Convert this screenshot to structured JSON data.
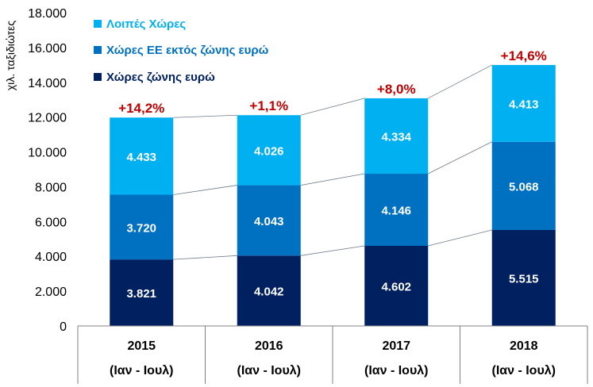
{
  "chart_data": {
    "type": "bar",
    "stacked": true,
    "ylabel": "χιλ. ταξιδιώτες",
    "ylim": [
      0,
      18000
    ],
    "ytick_values": [
      0,
      2000,
      4000,
      6000,
      8000,
      10000,
      12000,
      14000,
      16000,
      18000
    ],
    "ytick_labels": [
      "0",
      "2.000",
      "4.000",
      "6.000",
      "8.000",
      "10.000",
      "12.000",
      "14.000",
      "16.000",
      "18.000"
    ],
    "categories": [
      "2015",
      "2016",
      "2017",
      "2018"
    ],
    "category_sublabel": "(Ιαν - Ιουλ)",
    "series": [
      {
        "name": "Χώρες ζώνης ευρώ",
        "color": "#002060",
        "values": [
          3821,
          4042,
          4602,
          5515
        ],
        "labels": [
          "3.821",
          "4.042",
          "4.602",
          "5.515"
        ]
      },
      {
        "name": "Χώρες ΕΕ εκτός ζώνης ευρώ",
        "color": "#0070C0",
        "values": [
          3720,
          4043,
          4146,
          5068
        ],
        "labels": [
          "3.720",
          "4.043",
          "4.146",
          "5.068"
        ]
      },
      {
        "name": "Λοιπές Χώρες",
        "color": "#00B0F0",
        "values": [
          4433,
          4026,
          4334,
          4413
        ],
        "labels": [
          "4.433",
          "4.026",
          "4.334",
          "4.413"
        ]
      }
    ],
    "growth_labels": [
      "+14,2%",
      "+1,1%",
      "+8,0%",
      "+14,6%"
    ],
    "growth_color": "#C00000",
    "label_color": "#FFFFFF",
    "axis_text_color": "#000000",
    "legend_text_color": "#FFFFFF",
    "grid": false,
    "legend_position": "top-left"
  }
}
